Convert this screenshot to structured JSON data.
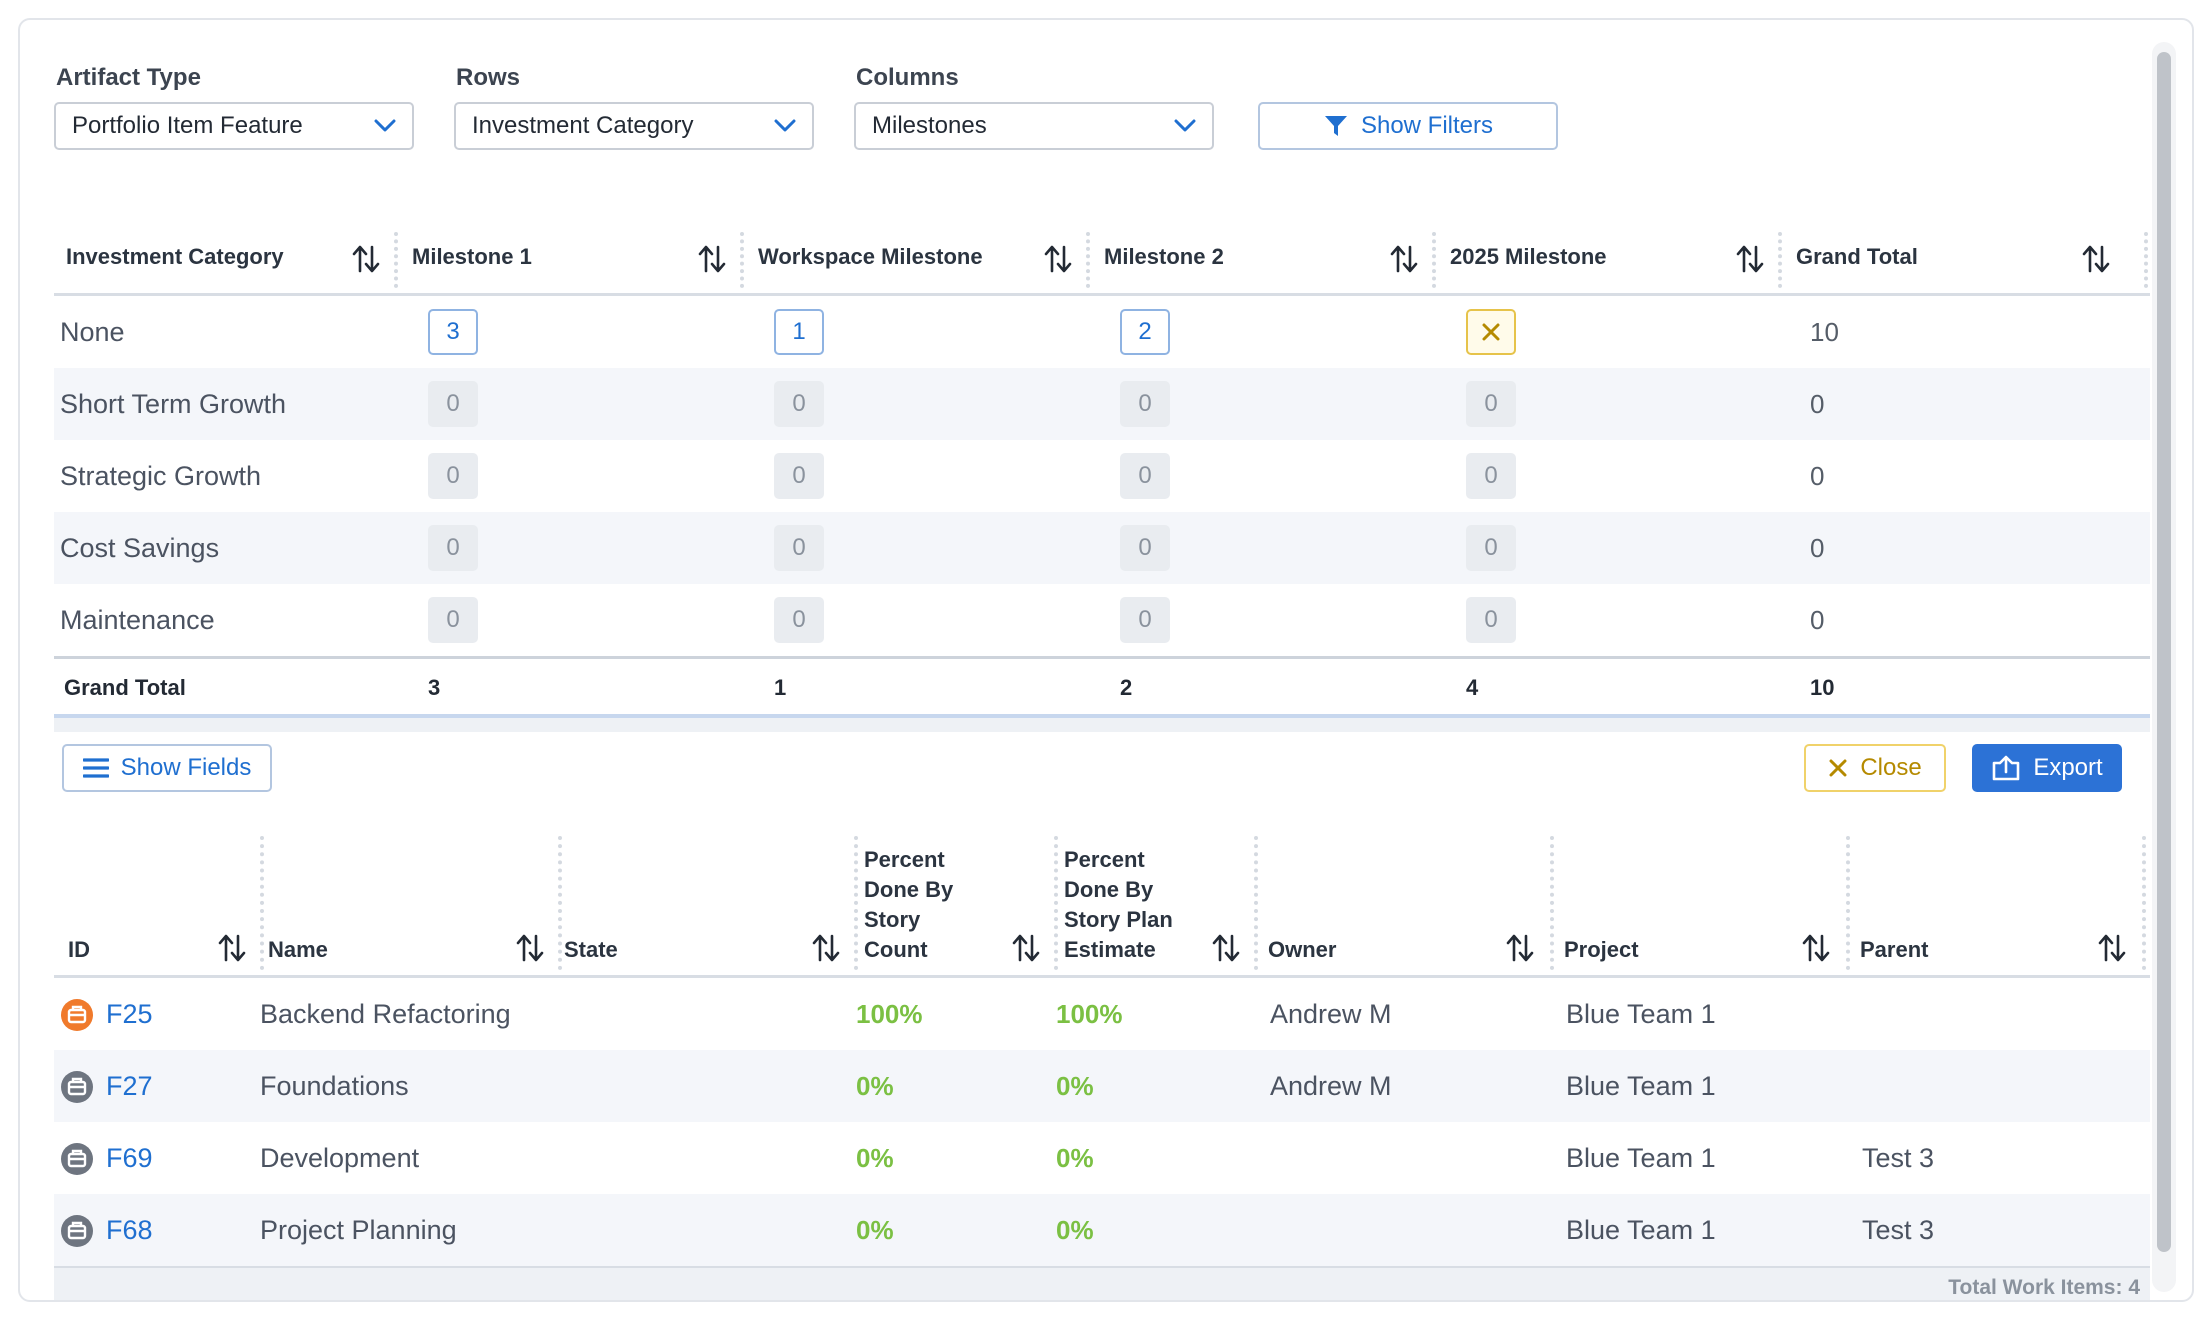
{
  "controls": {
    "artifact_type": {
      "label": "Artifact Type",
      "value": "Portfolio Item Feature"
    },
    "rows": {
      "label": "Rows",
      "value": "Investment Category"
    },
    "columns": {
      "label": "Columns",
      "value": "Milestones"
    },
    "show_filters": "Show Filters"
  },
  "pivot": {
    "headers": [
      "Investment Category",
      "Milestone 1",
      "Workspace Milestone",
      "Milestone 2",
      "2025 Milestone",
      "Grand Total"
    ],
    "rows": [
      {
        "name": "None",
        "cells": [
          "3",
          "1",
          "2",
          "×"
        ],
        "total": "10"
      },
      {
        "name": "Short Term Growth",
        "cells": [
          "0",
          "0",
          "0",
          "0"
        ],
        "total": "0"
      },
      {
        "name": "Strategic Growth",
        "cells": [
          "0",
          "0",
          "0",
          "0"
        ],
        "total": "0"
      },
      {
        "name": "Cost Savings",
        "cells": [
          "0",
          "0",
          "0",
          "0"
        ],
        "total": "0"
      },
      {
        "name": "Maintenance",
        "cells": [
          "0",
          "0",
          "0",
          "0"
        ],
        "total": "0"
      }
    ],
    "grand_total": {
      "label": "Grand Total",
      "values": [
        "3",
        "1",
        "2",
        "4",
        "10"
      ]
    }
  },
  "toolbar": {
    "show_fields": "Show Fields",
    "close": "Close",
    "export": "Export"
  },
  "grid": {
    "headers": {
      "id": "ID",
      "name": "Name",
      "state": "State",
      "pct_count": [
        "Percent",
        "Done By",
        "Story",
        "Count"
      ],
      "pct_estimate": [
        "Percent",
        "Done By",
        "Story Plan",
        "Estimate"
      ],
      "owner": "Owner",
      "project": "Project",
      "parent": "Parent"
    },
    "rows": [
      {
        "id": "F25",
        "name": "Backend Refactoring",
        "state": "",
        "pct_count": "100%",
        "pct_estimate": "100%",
        "owner": "Andrew M",
        "project": "Blue Team 1",
        "parent": "",
        "icon": "orange"
      },
      {
        "id": "F27",
        "name": "Foundations",
        "state": "",
        "pct_count": "0%",
        "pct_estimate": "0%",
        "owner": "Andrew M",
        "project": "Blue Team 1",
        "parent": "",
        "icon": "gray"
      },
      {
        "id": "F69",
        "name": "Development",
        "state": "",
        "pct_count": "0%",
        "pct_estimate": "0%",
        "owner": "",
        "project": "Blue Team 1",
        "parent": "Test 3",
        "icon": "gray"
      },
      {
        "id": "F68",
        "name": "Project Planning",
        "state": "",
        "pct_count": "0%",
        "pct_estimate": "0%",
        "owner": "",
        "project": "Blue Team 1",
        "parent": "Test 3",
        "icon": "gray"
      }
    ],
    "footer": "Total Work Items: 4"
  },
  "colors": {
    "link": "#1f6fd0",
    "percent": "#7bc043",
    "export_bg": "#2c72d6",
    "warning": "#b58a00",
    "feature_icon_active": "#f07a2c",
    "feature_icon_default": "#6e7580"
  }
}
